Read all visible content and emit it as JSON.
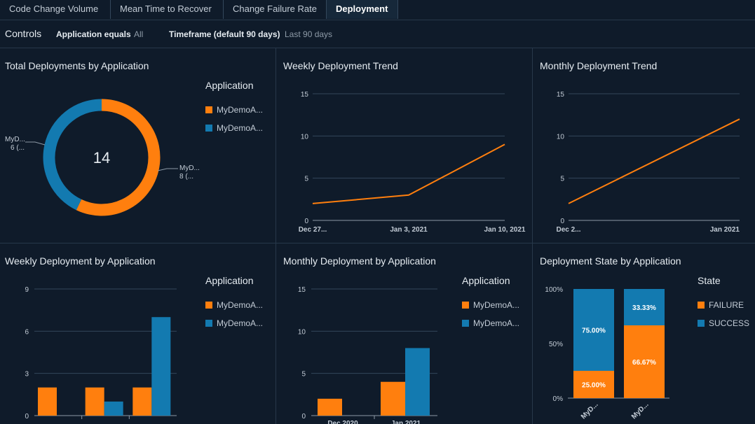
{
  "colors": {
    "orange": "#ff7f0e",
    "blue": "#137ab0",
    "grid": "#33475b",
    "axis_text": "#c3ccd6"
  },
  "tabs": [
    {
      "label": "Code Change Volume",
      "active": false
    },
    {
      "label": "Mean Time to Recover",
      "active": false
    },
    {
      "label": "Change Failure Rate",
      "active": false
    },
    {
      "label": "Deployment",
      "active": true
    }
  ],
  "controls": {
    "title": "Controls",
    "application_label": "Application equals",
    "application_value": "All",
    "timeframe_label": "Timeframe (default 90 days)",
    "timeframe_value": "Last 90 days"
  },
  "panels": {
    "total_deployments": {
      "title": "Total Deployments by Application",
      "legend_title": "Application",
      "legend": [
        "MyDemoA...",
        "MyDemoA..."
      ],
      "center_total": "14",
      "label_a_name": "MyD...",
      "label_a_value": "8 (...",
      "label_b_name": "MyD...",
      "label_b_value": "6 (..."
    },
    "weekly_trend": {
      "title": "Weekly Deployment Trend"
    },
    "monthly_trend": {
      "title": "Monthly Deployment Trend"
    },
    "weekly_by_app": {
      "title": "Weekly Deployment by Application",
      "legend_title": "Application",
      "legend": [
        "MyDemoA...",
        "MyDemoA..."
      ]
    },
    "monthly_by_app": {
      "title": "Monthly Deployment by Application",
      "legend_title": "Application",
      "legend": [
        "MyDemoA...",
        "MyDemoA..."
      ]
    },
    "state_by_app": {
      "title": "Deployment State by Application",
      "legend_title": "State",
      "legend": [
        "FAILURE",
        "SUCCESS"
      ]
    }
  },
  "chart_data": [
    {
      "type": "pie",
      "title": "Total Deployments by Application",
      "categories": [
        "MyDemoA...",
        "MyDemoA..."
      ],
      "values": [
        8,
        6
      ],
      "total": 14
    },
    {
      "type": "line",
      "title": "Weekly Deployment Trend",
      "x": [
        "Dec 27...",
        "Jan 3, 2021",
        "Jan 10, 2021"
      ],
      "values": [
        2,
        3,
        9
      ],
      "yticks": [
        0,
        5,
        10,
        15
      ],
      "ylim": [
        0,
        15
      ]
    },
    {
      "type": "line",
      "title": "Monthly Deployment Trend",
      "x": [
        "Dec 2...",
        "Jan 2021"
      ],
      "values": [
        2,
        12
      ],
      "yticks": [
        0,
        5,
        10,
        15
      ],
      "ylim": [
        0,
        15
      ]
    },
    {
      "type": "bar",
      "title": "Weekly Deployment by Application",
      "categories": [
        "",
        "",
        ""
      ],
      "series": [
        {
          "name": "MyDemoA...",
          "color": "orange",
          "values": [
            2,
            2,
            2
          ]
        },
        {
          "name": "MyDemoA...",
          "color": "blue",
          "values": [
            0,
            1,
            7
          ]
        }
      ],
      "yticks": [
        0,
        3,
        6,
        9
      ],
      "ylim": [
        0,
        9
      ]
    },
    {
      "type": "bar",
      "title": "Monthly Deployment by Application",
      "categories": [
        "Dec 2020",
        "Jan 2021"
      ],
      "series": [
        {
          "name": "MyDemoA...",
          "color": "orange",
          "values": [
            2,
            4
          ]
        },
        {
          "name": "MyDemoA...",
          "color": "blue",
          "values": [
            0,
            8
          ]
        }
      ],
      "yticks": [
        0,
        5,
        10,
        15
      ],
      "ylim": [
        0,
        15
      ]
    },
    {
      "type": "bar",
      "stacked": true,
      "title": "Deployment State by Application",
      "categories": [
        "MyD...",
        "MyD..."
      ],
      "series": [
        {
          "name": "FAILURE",
          "color": "orange",
          "values": [
            25.0,
            66.67
          ],
          "labels": [
            "25.00%",
            "66.67%"
          ]
        },
        {
          "name": "SUCCESS",
          "color": "blue",
          "values": [
            75.0,
            33.33
          ],
          "labels": [
            "75.00%",
            "33.33%"
          ]
        }
      ],
      "yticks": [
        "0%",
        "50%",
        "100%"
      ],
      "ylim": [
        0,
        100
      ]
    }
  ]
}
